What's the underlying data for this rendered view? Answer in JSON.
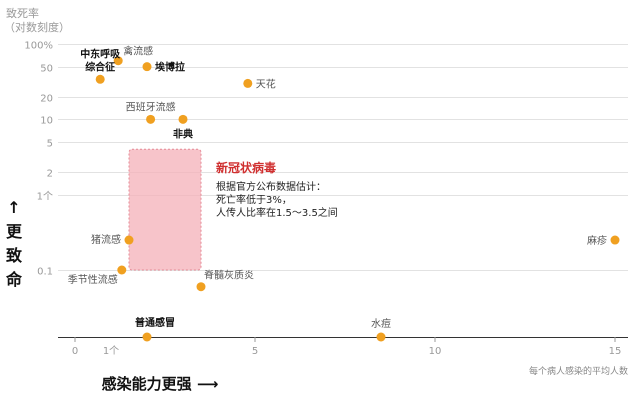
{
  "chart_data": {
    "type": "scatter",
    "ylabel_line1": "致死率",
    "ylabel_line2": "（对数刻度）",
    "xlabel": "感染能力更强",
    "xlabel_arrow": "⟶",
    "ylabel_side": "更致命",
    "ylabel_side_arrow": "↑",
    "x_note": "每个病人感染的平均人数",
    "x_ticks": [
      "0",
      "1个",
      "5",
      "10",
      "15"
    ],
    "x_tick_values": [
      0,
      1,
      5,
      10,
      15
    ],
    "y_ticks": [
      "100%",
      "50",
      "20",
      "10",
      "5",
      "2",
      "1个",
      "0.1"
    ],
    "y_tick_values": [
      100,
      50,
      20,
      10,
      5,
      2,
      1,
      0.1
    ],
    "x_range": [
      0,
      15.5
    ],
    "y_scale": "log",
    "y_range": [
      0.05,
      100
    ],
    "point_color": "#f0a020",
    "region_color": "#f4b0b8",
    "region_title_color": "#d03030",
    "points": [
      {
        "name": "中东呼吸\n综合征",
        "x": 0.7,
        "y": 34,
        "bold": true
      },
      {
        "name": "禽流感",
        "x": 1.2,
        "y": 60,
        "bold": false
      },
      {
        "name": "埃博拉",
        "x": 2.0,
        "y": 50,
        "bold": true
      },
      {
        "name": "天花",
        "x": 4.8,
        "y": 30,
        "bold": false
      },
      {
        "name": "西班牙流感",
        "x": 2.1,
        "y": 10,
        "bold": false
      },
      {
        "name": "非典",
        "x": 3.0,
        "y": 10,
        "bold": true
      },
      {
        "name": "猪流感",
        "x": 1.5,
        "y": 0.25,
        "bold": false
      },
      {
        "name": "季节性流感",
        "x": 1.3,
        "y": 0.1,
        "bold": false
      },
      {
        "name": "脊髓灰质炎",
        "x": 3.5,
        "y": 0.06,
        "bold": false
      },
      {
        "name": "麻疹",
        "x": 15.0,
        "y": 0.25,
        "bold": false
      },
      {
        "name": "普通感冒",
        "x": 2.0,
        "y": 0.0,
        "on_axis": true,
        "bold": true
      },
      {
        "name": "水痘",
        "x": 8.5,
        "y": 0.0,
        "on_axis": true,
        "bold": false
      }
    ],
    "region": {
      "x_range": [
        1.5,
        3.5
      ],
      "y_range": [
        0.1,
        4.0
      ],
      "title": "新冠状病毒",
      "lines": [
        "根据官方公布数据估计：",
        "死亡率低于3%，",
        "人传人比率在1.5～3.5之间"
      ]
    }
  }
}
